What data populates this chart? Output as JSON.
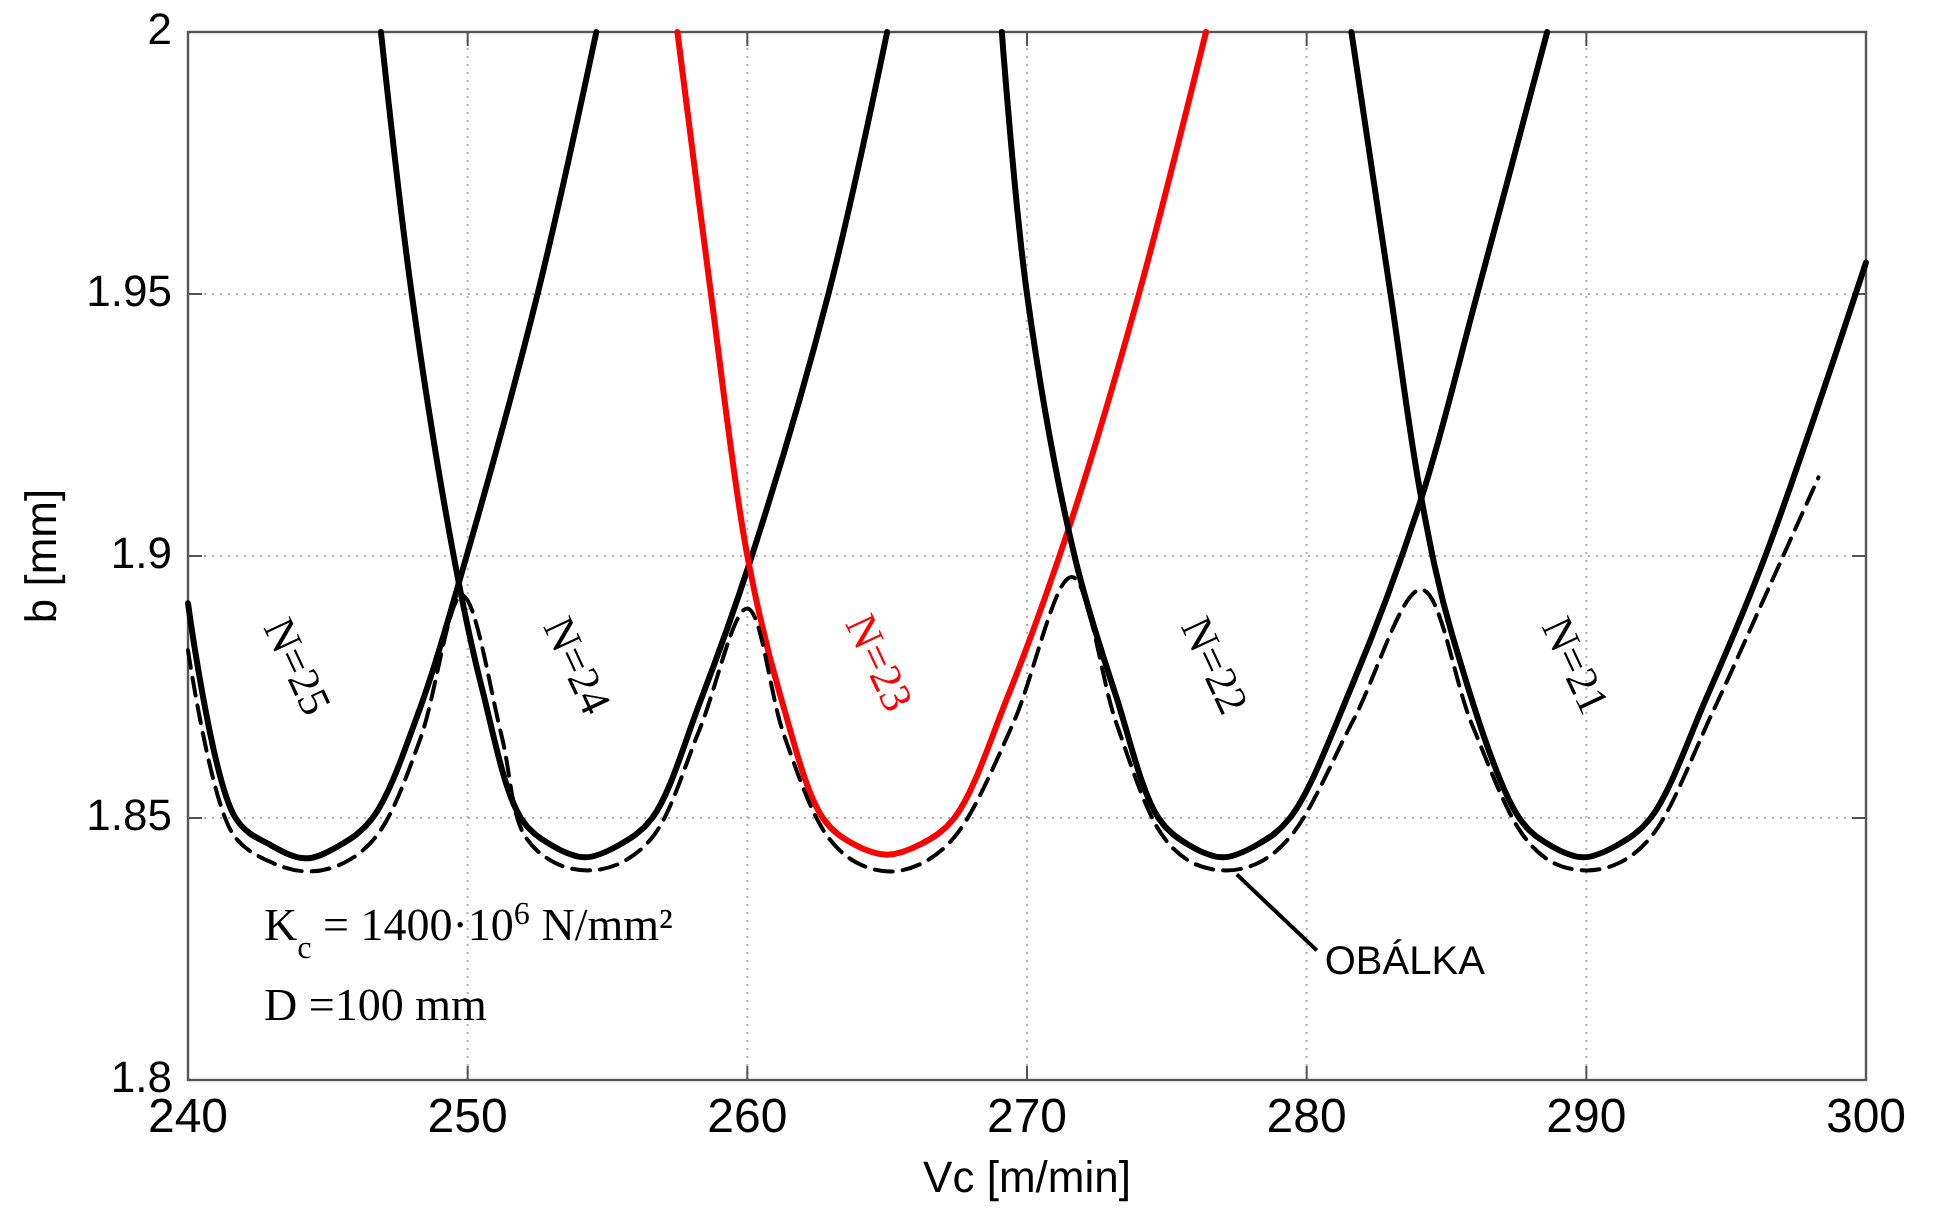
{
  "chart_data": {
    "type": "line",
    "xlabel": "Vc [m/min]",
    "ylabel": "b [mm]",
    "xlim": [
      240,
      300
    ],
    "ylim": [
      1.8,
      2
    ],
    "xticks": [
      240,
      250,
      260,
      270,
      280,
      290,
      300
    ],
    "yticks": [
      1.8,
      1.85,
      1.9,
      1.95,
      2
    ],
    "grid": true,
    "marker": "none",
    "series": [
      {
        "name": "N=25",
        "color": "#000000",
        "x": [
          240,
          241.7,
          243,
          244.2,
          245.4,
          246.6,
          248.3,
          249.8,
          252.5,
          254.6
        ],
        "values": [
          1.891,
          1.85,
          1.8447,
          1.8423,
          1.8447,
          1.85,
          1.871,
          1.897,
          1.95,
          2.0
        ]
      },
      {
        "name": "N=24",
        "color": "#000000",
        "x": [
          246.9,
          248.0,
          249.5,
          250.5,
          251.9,
          253,
          254.2,
          255.4,
          256.6,
          258.3,
          260.1,
          262.9,
          265.0
        ],
        "values": [
          2.0,
          1.95,
          1.9,
          1.875,
          1.85,
          1.8448,
          1.8425,
          1.8448,
          1.85,
          1.872,
          1.899,
          1.95,
          2.0
        ]
      },
      {
        "name": "N=23",
        "color": "#ff0000",
        "x": [
          257.5,
          258.7,
          260.0,
          261.2,
          262.7,
          263.8,
          265.0,
          266.2,
          267.4,
          269.3,
          271.6,
          274.0,
          276.4
        ],
        "values": [
          2.0,
          1.95,
          1.9,
          1.873,
          1.85,
          1.845,
          1.843,
          1.845,
          1.85,
          1.873,
          1.907,
          1.95,
          2.0
        ]
      },
      {
        "name": "N=22",
        "color": "#000000",
        "x": [
          269.1,
          270.0,
          271.7,
          273.2,
          274.7,
          275.8,
          277.0,
          278.2,
          279.4,
          281.6,
          284.1,
          286.1,
          288.6
        ],
        "values": [
          2.0,
          1.95,
          1.9,
          1.873,
          1.85,
          1.8448,
          1.8425,
          1.8448,
          1.85,
          1.875,
          1.911,
          1.95,
          2.0
        ]
      },
      {
        "name": "N=21",
        "color": "#000000",
        "x": [
          281.6,
          283.0,
          284.1,
          285.2,
          287.6,
          288.7,
          289.9,
          291.1,
          292.3,
          294.3,
          296.4,
          300
        ],
        "values": [
          2.0,
          1.95,
          1.911,
          1.885,
          1.85,
          1.8448,
          1.8425,
          1.8448,
          1.85,
          1.873,
          1.9,
          1.956
        ]
      },
      {
        "color": "#000000",
        "line_style": "dashed",
        "x": [
          240,
          241.6,
          243,
          244.3,
          245.6,
          246.8,
          248.3,
          249.8,
          251.2,
          252.0,
          253.1,
          254.3,
          255.5,
          256.7,
          258.3,
          260.0,
          261.3,
          262.8,
          263.9,
          265.1,
          266.3,
          267.5,
          269.5,
          271.6,
          273.2,
          274.8,
          275.9,
          277.1,
          278.3,
          279.5,
          281.7,
          284.1,
          285.9,
          287.7,
          288.8,
          290.0,
          291.2,
          292.4,
          294.5,
          296.7,
          298.3
        ],
        "values": [
          1.882,
          1.847,
          1.8415,
          1.8398,
          1.8415,
          1.847,
          1.865,
          1.8925,
          1.866,
          1.847,
          1.8415,
          1.84,
          1.8415,
          1.847,
          1.867,
          1.89,
          1.866,
          1.847,
          1.8415,
          1.8398,
          1.8415,
          1.847,
          1.868,
          1.896,
          1.868,
          1.847,
          1.8415,
          1.84,
          1.8415,
          1.847,
          1.869,
          1.8936,
          1.868,
          1.847,
          1.8415,
          1.84,
          1.8415,
          1.847,
          1.87,
          1.896,
          1.915
        ]
      }
    ],
    "annotations": [
      {
        "text": "OBÁLKA",
        "x": 277.5,
        "y": 1.84
      },
      "K$_{c}$ =  1400·10$^{6}$ N/mm²",
      "D =100 mm"
    ]
  }
}
